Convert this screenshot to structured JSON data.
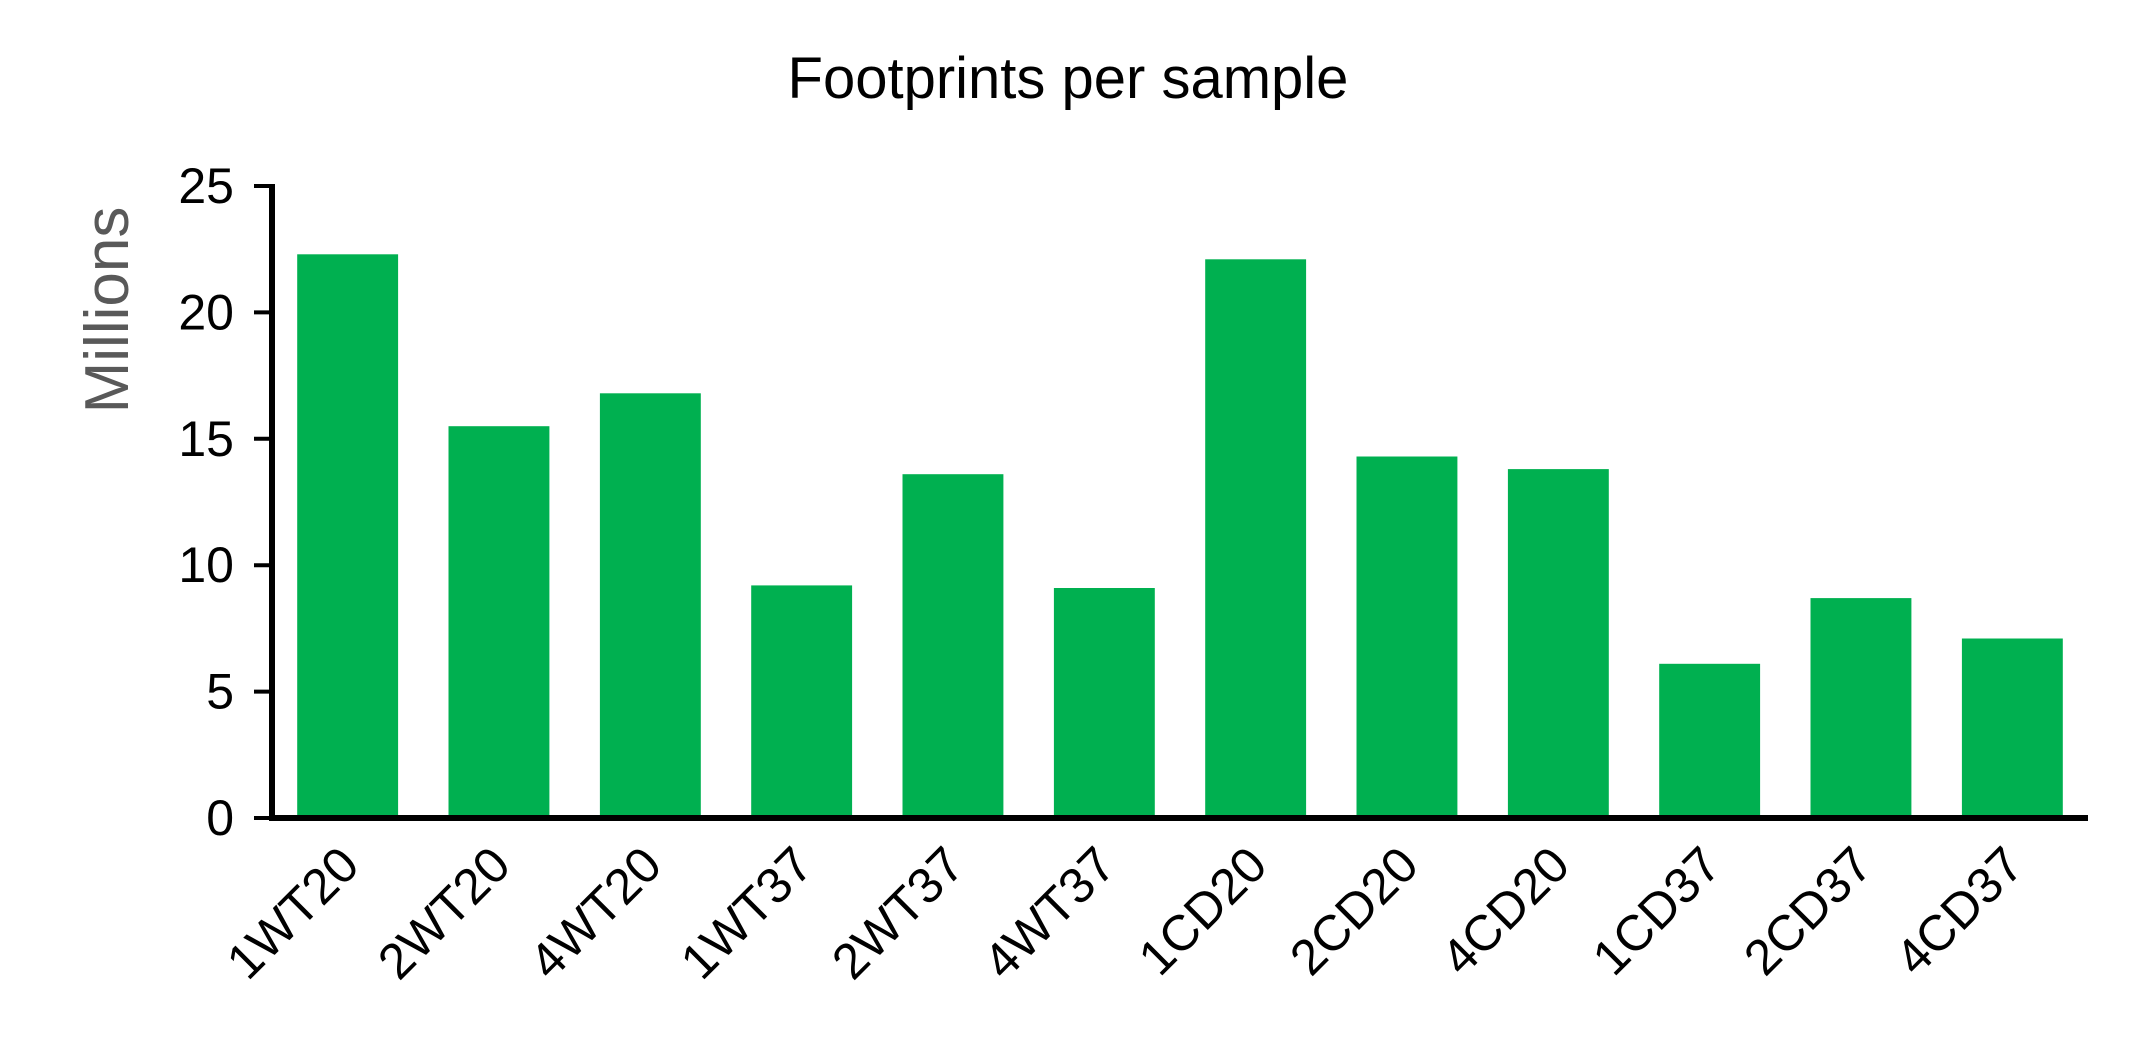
{
  "chart_data": {
    "type": "bar",
    "title": "Footprints per sample",
    "xlabel": "",
    "ylabel": "Millions",
    "ylim": [
      0,
      25
    ],
    "yticks": [
      0,
      5,
      10,
      15,
      20,
      25
    ],
    "grid": false,
    "legend": "none",
    "bar_color": "#00b050",
    "categories": [
      "1WT20",
      "2WT20",
      "4WT20",
      "1WT37",
      "2WT37",
      "4WT37",
      "1CD20",
      "2CD20",
      "4CD20",
      "1CD37",
      "2CD37",
      "4CD37"
    ],
    "values": [
      22.3,
      15.5,
      16.8,
      9.2,
      13.6,
      9.1,
      22.1,
      14.3,
      13.8,
      6.1,
      8.7,
      7.1
    ]
  }
}
